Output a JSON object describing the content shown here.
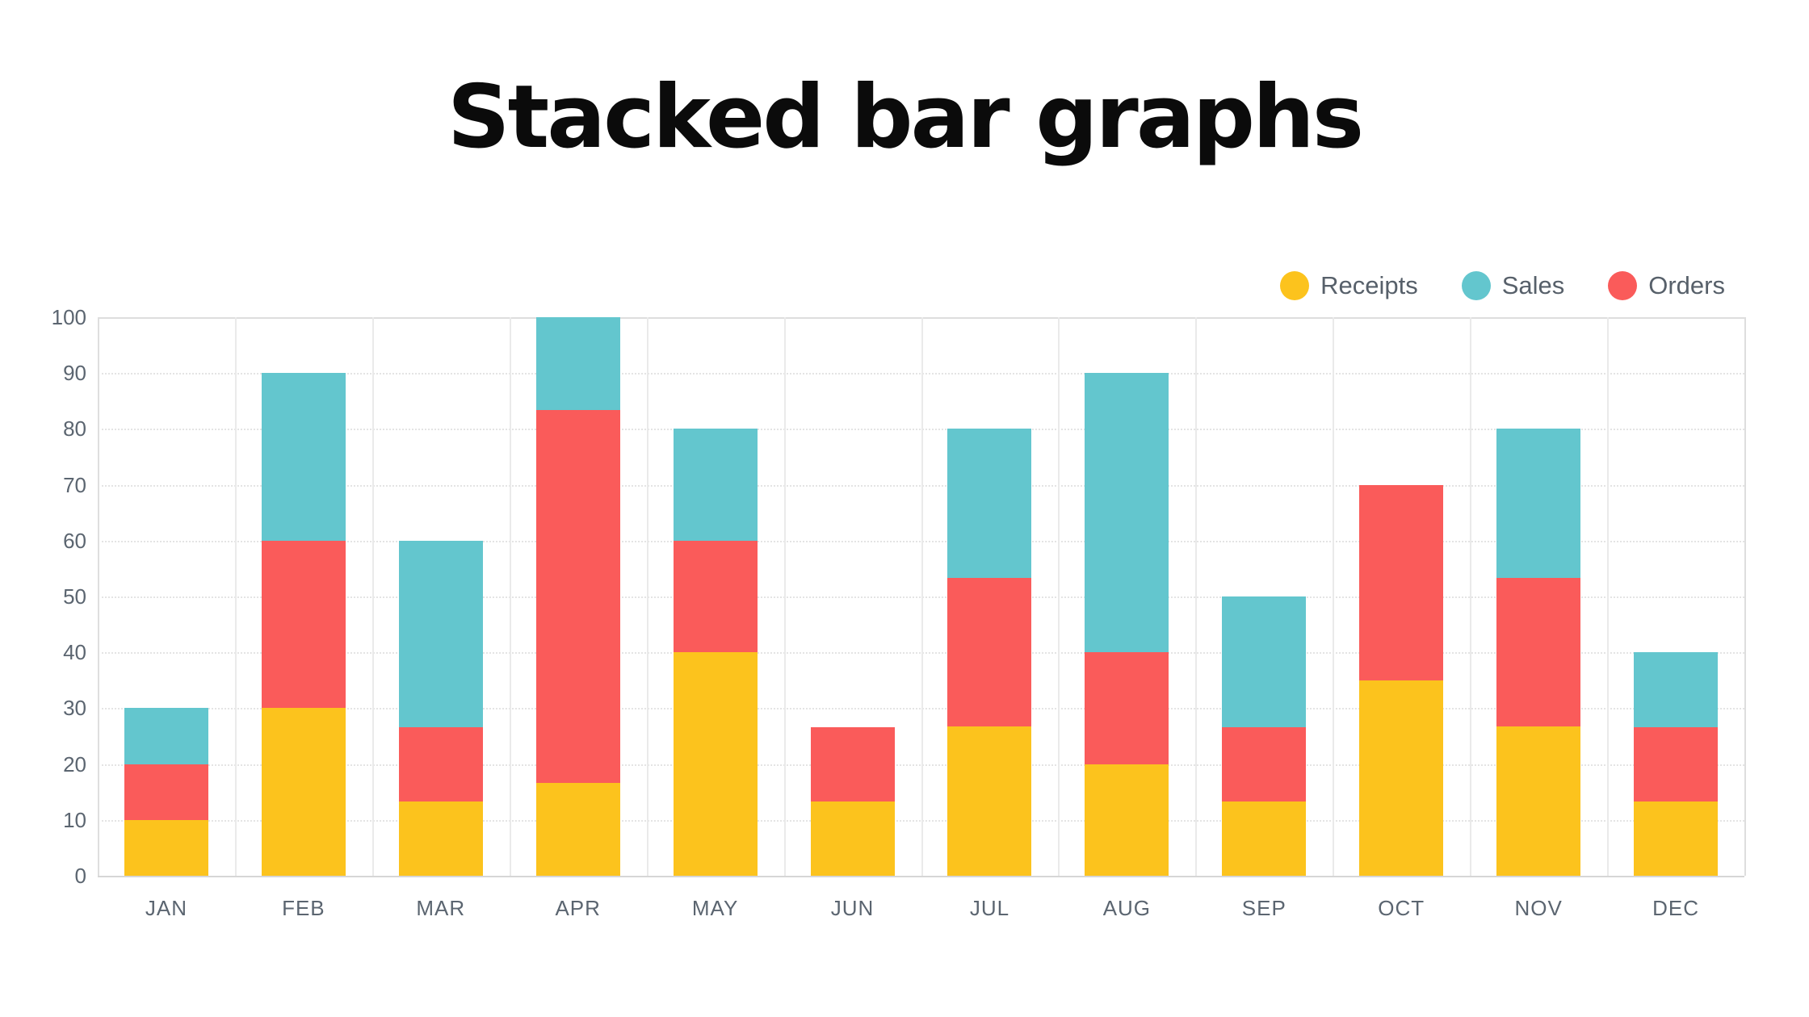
{
  "page": {
    "title": "Stacked bar graphs"
  },
  "chart_data": {
    "type": "bar",
    "stacked": true,
    "title": "Stacked bar graphs",
    "xlabel": "",
    "ylabel": "",
    "grid": true,
    "legend_position": "top-right",
    "categories": [
      "JAN",
      "FEB",
      "MAR",
      "APR",
      "MAY",
      "JUN",
      "JUL",
      "AUG",
      "SEP",
      "OCT",
      "NOV",
      "DEC"
    ],
    "series": [
      {
        "name": "Receipts",
        "color": "#FCC31D",
        "values": [
          10,
          30,
          13.33,
          16.67,
          40,
          13.33,
          26.67,
          20,
          13.33,
          35,
          26.67,
          13.33
        ]
      },
      {
        "name": "Orders",
        "color": "#FA5B5A",
        "values": [
          10,
          30,
          13.33,
          66.67,
          20,
          13.33,
          26.67,
          20,
          13.33,
          35,
          26.67,
          13.33
        ]
      },
      {
        "name": "Sales",
        "color": "#63C6CE",
        "values": [
          10,
          30,
          33.33,
          16.67,
          20,
          0,
          26.67,
          50,
          23.33,
          0,
          26.67,
          13.33
        ]
      }
    ],
    "stack_order_bottom_to_top": [
      "Receipts",
      "Orders",
      "Sales"
    ],
    "bar_totals": [
      30,
      90,
      60,
      100,
      80,
      26.67,
      80,
      90,
      50,
      70,
      80,
      40
    ],
    "y_axis": {
      "min": 0,
      "max": 100,
      "step": 10,
      "tick_labels": [
        "0",
        "10",
        "20",
        "30",
        "40",
        "50",
        "60",
        "70",
        "80",
        "90",
        "100"
      ]
    },
    "legend": [
      {
        "label": "Receipts",
        "color": "#FCC31D"
      },
      {
        "label": "Sales",
        "color": "#63C6CE"
      },
      {
        "label": "Orders",
        "color": "#FA5B5A"
      }
    ]
  },
  "colors": {
    "background": "#FFFFFF",
    "title_text": "#0B0B0B",
    "axis_text": "#5B6570",
    "legend_text": "#57606A",
    "gridline": "#E4E4E4",
    "column_line": "#EAEAEA",
    "plot_border": "#DEDEDE",
    "baseline": "#D6D6D6"
  }
}
